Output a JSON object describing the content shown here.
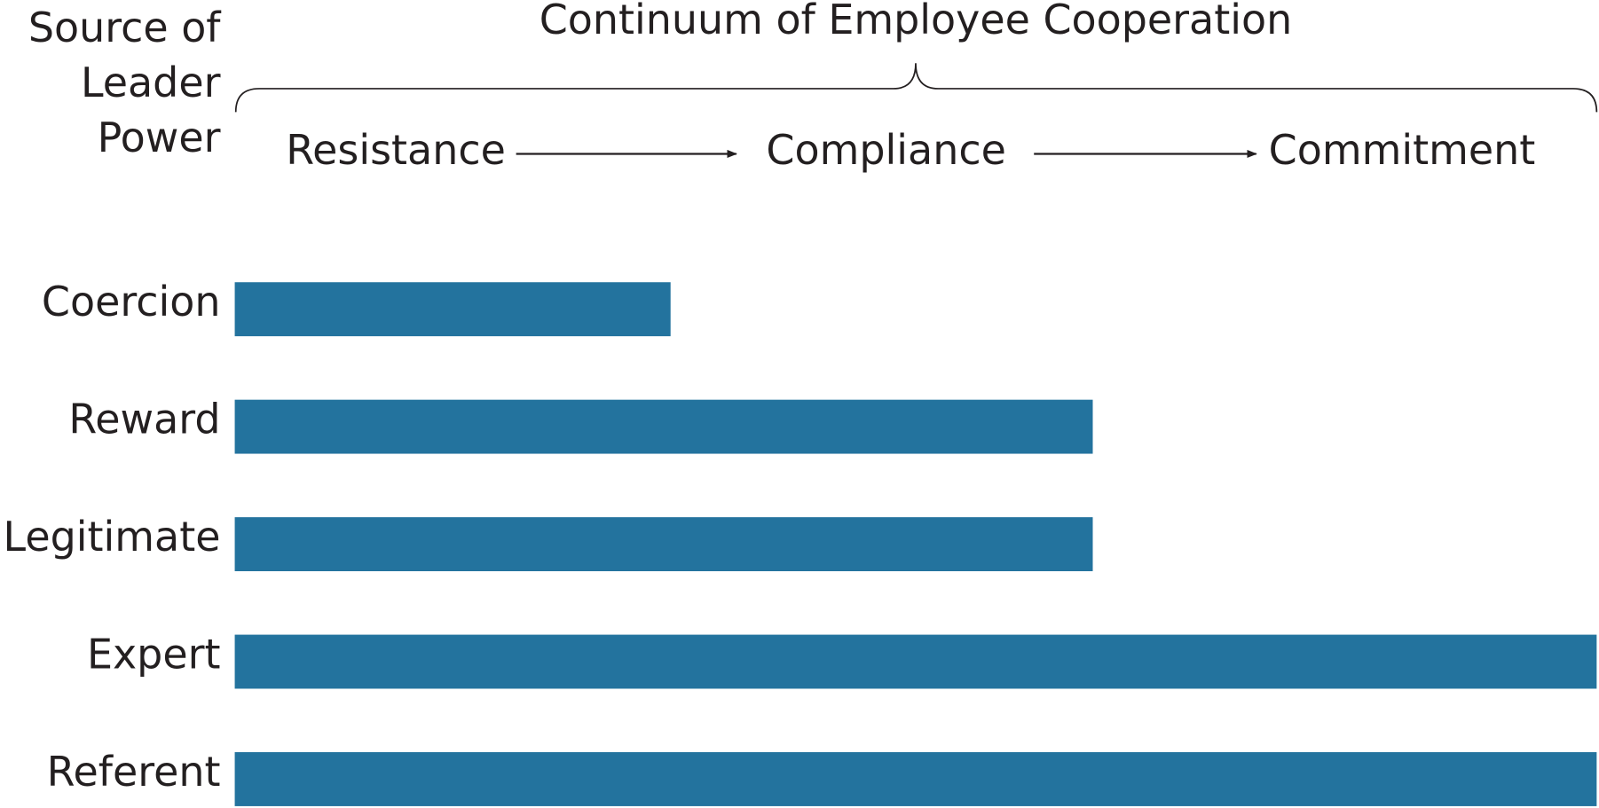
{
  "chart_data": {
    "type": "bar",
    "orientation": "horizontal",
    "title": "Continuum of Employee Cooperation",
    "ylabel": [
      "Source of",
      "Leader",
      "Power"
    ],
    "scale_labels": [
      "Resistance",
      "Compliance",
      "Commitment"
    ],
    "categories": [
      "Coercion",
      "Reward",
      "Legitimate",
      "Expert",
      "Referent"
    ],
    "values": [
      32,
      63,
      63,
      100,
      100
    ],
    "color": "#23739e",
    "xlim": [
      0,
      100
    ]
  }
}
